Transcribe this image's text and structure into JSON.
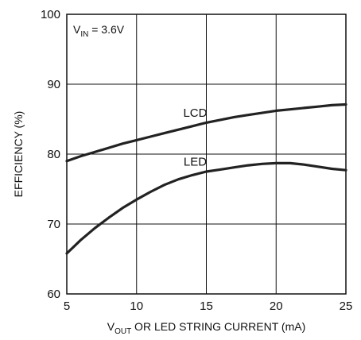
{
  "chart_data": {
    "type": "line",
    "title": "",
    "xlabel": {
      "prefix": "V",
      "sub": "OUT",
      "rest": " OR LED STRING CURRENT (mA)"
    },
    "ylabel": "EFFICIENCY (%)",
    "xlim": [
      5,
      25
    ],
    "ylim": [
      60,
      100
    ],
    "xticks": [
      5,
      10,
      15,
      20,
      25
    ],
    "yticks": [
      60,
      70,
      80,
      90,
      100
    ],
    "grid": true,
    "annotation": {
      "prefix": "V",
      "sub": "IN",
      "rest": " = 3.6V"
    },
    "series": [
      {
        "name": "LCD",
        "color": "#222222",
        "x": [
          5,
          6,
          7,
          8,
          9,
          10,
          11,
          12,
          13,
          14,
          15,
          16,
          17,
          18,
          19,
          20,
          21,
          22,
          23,
          24,
          25
        ],
        "values": [
          79.0,
          79.7,
          80.3,
          80.9,
          81.5,
          82.0,
          82.5,
          83.0,
          83.5,
          84.0,
          84.5,
          84.9,
          85.3,
          85.6,
          85.9,
          86.2,
          86.4,
          86.6,
          86.8,
          87.0,
          87.1
        ]
      },
      {
        "name": "LED",
        "color": "#222222",
        "x": [
          5,
          6,
          7,
          8,
          9,
          10,
          11,
          12,
          13,
          14,
          15,
          16,
          17,
          18,
          19,
          20,
          21,
          22,
          23,
          24,
          25
        ],
        "values": [
          65.8,
          67.7,
          69.4,
          70.9,
          72.3,
          73.5,
          74.6,
          75.6,
          76.4,
          77.0,
          77.5,
          77.8,
          78.1,
          78.4,
          78.6,
          78.7,
          78.7,
          78.5,
          78.2,
          77.9,
          77.7
        ]
      }
    ]
  }
}
